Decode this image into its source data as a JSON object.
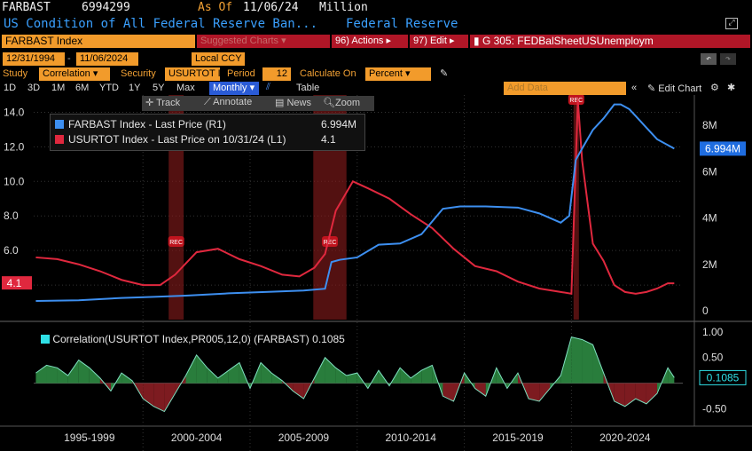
{
  "header": {
    "ticker": "FARBAST",
    "value": "6994299",
    "as_of_label": "As Of",
    "as_of_date": "11/06/24",
    "units": "Million",
    "description": "US Condition of All Federal Reserve Ban...",
    "source": "Federal Reserve"
  },
  "toolbar": {
    "security_label": "FARBAST Index",
    "suggested": "Suggested Charts",
    "actions": "Actions",
    "actions_num": "96)",
    "edit": "Edit",
    "edit_num": "97)",
    "chart_id": "G 305: FEDBalSheetUSUnemploym"
  },
  "controls": {
    "start_date": "12/31/1994",
    "end_date": "11/06/2024",
    "currency": "Local CCY",
    "study_label": "Study",
    "study_value": "Correlation",
    "security_label": "Security",
    "security_value": "USURTOT I",
    "period_label": "Period",
    "period_value": "12",
    "calc_label": "Calculate On",
    "calc_value": "Percent"
  },
  "ranges": {
    "items": [
      "1D",
      "3D",
      "1M",
      "6M",
      "YTD",
      "1Y",
      "5Y",
      "Max"
    ],
    "frequency": "Monthly",
    "table": "Table",
    "add_data": "Add Data",
    "edit_chart": "Edit Chart"
  },
  "chart_tools": {
    "track": "Track",
    "annotate": "Annotate",
    "news": "News",
    "zoom": "Zoom"
  },
  "legend": {
    "items": [
      {
        "label": "FARBAST Index - Last Price (R1)",
        "value": "6.994M",
        "color": "#3d8ff0"
      },
      {
        "label": "USURTOT Index - Last Price on 10/31/24 (L1)",
        "value": "4.1",
        "color": "#e0283e"
      }
    ],
    "study": "Correlation(USURTOT Index,PR005,12,0) (FARBAST)",
    "study_value": "0.1085"
  },
  "chart_data": [
    {
      "type": "line",
      "series": [
        {
          "name": "USURTOT Index - Last Price on 10/31/24 (L1)",
          "axis": "left",
          "color": "#e0283e",
          "x": [
            1995.0,
            1996.0,
            1997.0,
            1998.0,
            1999.0,
            2000.0,
            2000.8,
            2001.5,
            2002.5,
            2003.5,
            2004.5,
            2005.5,
            2006.5,
            2007.3,
            2008.0,
            2008.5,
            2009.0,
            2009.8,
            2010.5,
            2011.5,
            2012.5,
            2013.5,
            2014.5,
            2015.5,
            2016.5,
            2017.5,
            2018.5,
            2019.5,
            2020.0,
            2020.3,
            2020.5,
            2021.0,
            2021.5,
            2022.0,
            2022.5,
            2023.0,
            2023.5,
            2024.0,
            2024.5,
            2024.8
          ],
          "y": [
            5.6,
            5.5,
            5.2,
            4.8,
            4.3,
            4.0,
            4.0,
            4.6,
            5.9,
            6.1,
            5.5,
            5.1,
            4.6,
            4.5,
            5.0,
            5.8,
            8.3,
            10.0,
            9.6,
            9.0,
            8.1,
            7.3,
            6.1,
            5.1,
            4.8,
            4.2,
            3.8,
            3.6,
            3.5,
            14.7,
            11.2,
            6.4,
            5.4,
            4.0,
            3.6,
            3.5,
            3.6,
            3.8,
            4.1,
            4.1
          ]
        },
        {
          "name": "FARBAST Index - Last Price (R1)",
          "axis": "right",
          "color": "#3d8ff0",
          "x": [
            1995.0,
            1997.0,
            1999.0,
            2000.5,
            2002.0,
            2004.0,
            2006.0,
            2007.5,
            2008.5,
            2008.8,
            2009.2,
            2010.0,
            2011.0,
            2012.0,
            2013.0,
            2014.0,
            2014.8,
            2016.0,
            2017.5,
            2018.5,
            2019.5,
            2019.9,
            2020.2,
            2020.5,
            2021.0,
            2021.5,
            2022.0,
            2022.3,
            2022.7,
            2023.0,
            2023.5,
            2024.0,
            2024.8
          ],
          "y": [
            0.42,
            0.45,
            0.55,
            0.6,
            0.65,
            0.75,
            0.82,
            0.87,
            0.95,
            2.1,
            2.2,
            2.3,
            2.85,
            2.9,
            3.3,
            4.4,
            4.5,
            4.5,
            4.45,
            4.2,
            3.8,
            4.1,
            6.5,
            7.0,
            7.8,
            8.3,
            8.9,
            8.9,
            8.7,
            8.4,
            7.9,
            7.4,
            6.994
          ]
        }
      ],
      "ylim_left": [
        2.0,
        15.0
      ],
      "ylim_right": [
        0,
        9.5
      ],
      "left_ticks": [
        "4.0",
        "6.0",
        "8.0",
        "10.0",
        "12.0",
        "14.0"
      ],
      "right_ticks": [
        "0",
        "2M",
        "4M",
        "6M",
        "8M"
      ],
      "recession_bands": [
        [
          2001.2,
          2001.9
        ],
        [
          2007.95,
          2009.5
        ],
        [
          2020.1,
          2020.35
        ]
      ],
      "last_left_label": "4.1",
      "last_right_label": "6.994M"
    },
    {
      "type": "area",
      "name": "Correlation(USURTOT Index,PR005,12,0) (FARBAST)",
      "x": [
        1995.0,
        1995.5,
        1996.0,
        1996.5,
        1997.0,
        1997.5,
        1998.0,
        1998.5,
        1999.0,
        1999.5,
        2000.0,
        2000.5,
        2001.0,
        2001.5,
        2002.0,
        2002.5,
        2003.0,
        2003.5,
        2004.0,
        2004.5,
        2005.0,
        2005.5,
        2006.0,
        2006.5,
        2007.0,
        2007.5,
        2008.0,
        2008.5,
        2009.0,
        2009.5,
        2010.0,
        2010.5,
        2011.0,
        2011.5,
        2012.0,
        2012.5,
        2013.0,
        2013.5,
        2014.0,
        2014.5,
        2015.0,
        2015.5,
        2016.0,
        2016.5,
        2017.0,
        2017.5,
        2018.0,
        2018.5,
        2019.0,
        2019.5,
        2020.0,
        2020.5,
        2021.0,
        2021.5,
        2022.0,
        2022.5,
        2023.0,
        2023.5,
        2024.0,
        2024.5,
        2024.8
      ],
      "y": [
        0.2,
        0.35,
        0.3,
        0.15,
        0.45,
        0.3,
        0.1,
        -0.15,
        0.2,
        0.05,
        -0.3,
        -0.45,
        -0.55,
        -0.2,
        0.15,
        0.55,
        0.3,
        0.1,
        0.25,
        0.4,
        -0.1,
        0.4,
        0.2,
        0.05,
        -0.15,
        -0.3,
        0.1,
        0.5,
        0.3,
        0.15,
        0.2,
        -0.1,
        0.25,
        -0.05,
        0.3,
        0.1,
        0.25,
        0.35,
        -0.25,
        -0.35,
        0.2,
        -0.1,
        -0.25,
        0.3,
        -0.1,
        0.2,
        -0.3,
        -0.35,
        -0.1,
        0.15,
        0.9,
        0.85,
        0.75,
        0.2,
        -0.35,
        -0.45,
        -0.3,
        -0.4,
        -0.2,
        0.3,
        0.11
      ],
      "ylim": [
        -0.8,
        1.1
      ],
      "y_ticks": [
        "1.00",
        "0.50",
        "-0.50"
      ],
      "last_label": "0.1085"
    }
  ],
  "x_axis": {
    "labels": [
      "1995-1999",
      "2000-2004",
      "2005-2009",
      "2010-2014",
      "2015-2019",
      "2020-2024"
    ],
    "recession_label": "REC"
  }
}
